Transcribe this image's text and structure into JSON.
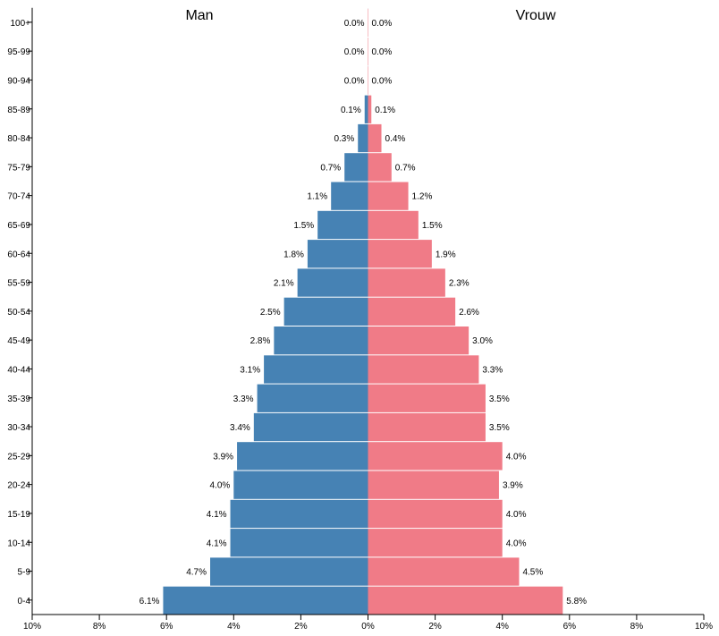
{
  "chart_data": {
    "type": "bar",
    "orientation": "horizontal",
    "layout": "population-pyramid",
    "categories": [
      "0-4",
      "5-9",
      "10-14",
      "15-19",
      "20-24",
      "25-29",
      "30-34",
      "35-39",
      "40-44",
      "45-49",
      "50-54",
      "55-59",
      "60-64",
      "65-69",
      "70-74",
      "75-79",
      "80-84",
      "85-89",
      "90-94",
      "95-99",
      "100+"
    ],
    "series": [
      {
        "name": "Man",
        "color": "#4682b4",
        "values": [
          6.1,
          4.7,
          4.1,
          4.1,
          4.0,
          3.9,
          3.4,
          3.3,
          3.1,
          2.8,
          2.5,
          2.1,
          1.8,
          1.5,
          1.1,
          0.7,
          0.3,
          0.1,
          0.0,
          0.0,
          0.0
        ],
        "labels": [
          "6.1%",
          "4.7%",
          "4.1%",
          "4.1%",
          "4.0%",
          "3.9%",
          "3.4%",
          "3.3%",
          "3.1%",
          "2.8%",
          "2.5%",
          "2.1%",
          "1.8%",
          "1.5%",
          "1.1%",
          "0.7%",
          "0.3%",
          "0.1%",
          "0.0%",
          "0.0%",
          "0.0%"
        ]
      },
      {
        "name": "Vrouw",
        "color": "#f07b87",
        "values": [
          5.8,
          4.5,
          4.0,
          4.0,
          3.9,
          4.0,
          3.5,
          3.5,
          3.3,
          3.0,
          2.6,
          2.3,
          1.9,
          1.5,
          1.2,
          0.7,
          0.4,
          0.1,
          0.0,
          0.0,
          0.0
        ],
        "labels": [
          "5.8%",
          "4.5%",
          "4.0%",
          "4.0%",
          "3.9%",
          "4.0%",
          "3.5%",
          "3.5%",
          "3.3%",
          "3.0%",
          "2.6%",
          "2.3%",
          "1.9%",
          "1.5%",
          "1.2%",
          "0.7%",
          "0.4%",
          "0.1%",
          "0.0%",
          "0.0%",
          "0.0%"
        ]
      }
    ],
    "xlim": [
      -10,
      10
    ],
    "x_ticks": [
      "10%",
      "8%",
      "6%",
      "4%",
      "2%",
      "0%",
      "2%",
      "4%",
      "6%",
      "8%",
      "10%"
    ],
    "grid": false,
    "legend": "none"
  }
}
